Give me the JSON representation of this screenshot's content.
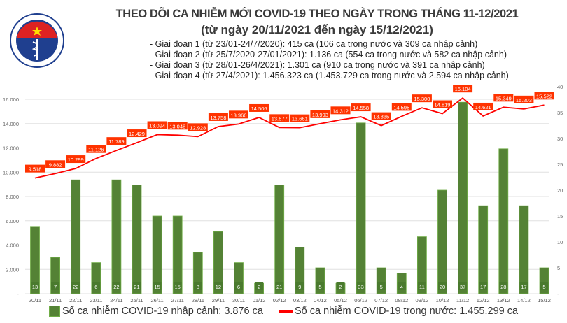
{
  "header": {
    "title": "THEO DÕI CA NHIỄM MỚI COVID-19 THEO NGÀY TRONG THÁNG 11-12/2021",
    "subtitle": "(từ ngày 20/11/2021 đến ngày 15/12/2021)",
    "phases": [
      "- Giai đoạn 1 (từ 23/01-24/7/2020): 415 ca (106 ca trong nước và 309 ca nhập cảnh)",
      "- Giai đoạn 2 (từ 25/7/2020-27/01/2021): 1.136 ca (554 ca trong nước và 582 ca nhập cảnh)",
      "- Giai đoạn 3 (từ 28/01-26/4/2021): 1.301 ca (910 ca trong nước và 391 ca nhập cảnh)",
      "- Giai đoạn 4 (từ 27/4/2021): 1.456.323 ca (1.453.729 ca trong nước và 2.594 ca nhập cảnh)"
    ],
    "logo_text": "BỘ Y TẾ MINISTRY OF HEALTH"
  },
  "legend": {
    "bar_label": "Số ca nhiễm COVID-19 nhập cảnh: 3.876 ca",
    "line_label": "Số ca nhiễm COVID-19 trong nước: 1.455.299 ca"
  },
  "colors": {
    "bar": "#548235",
    "bar_border": "#70ad47",
    "line": "#ff0000",
    "line_label_bg": "#ff3300"
  },
  "chart_data": {
    "type": "bar+line",
    "categories": [
      "20/11",
      "21/11",
      "22/11",
      "23/11",
      "24/11",
      "25/11",
      "26/11",
      "27/11",
      "28/11",
      "29/11",
      "30/11",
      "01/12",
      "02/12",
      "03/12",
      "04/12",
      "05/12",
      "06/12",
      "07/12",
      "08/12",
      "09/12",
      "10/12",
      "11/12",
      "12/12",
      "13/12",
      "14/12",
      "15/12"
    ],
    "series": [
      {
        "name": "Số ca nhiễm COVID-19 nhập cảnh: 3.876 ca",
        "type": "bar",
        "axis": "right",
        "values": [
          13,
          7,
          22,
          6,
          22,
          21,
          15,
          15,
          8,
          12,
          6,
          2,
          21,
          9,
          5,
          2,
          33,
          5,
          4,
          11,
          20,
          37,
          17,
          28,
          17,
          5
        ],
        "labels": [
          "13",
          "7",
          "22",
          "6",
          "22",
          "21",
          "15",
          "15",
          "8",
          "12",
          "6",
          "2",
          "21",
          "9",
          "5",
          "2",
          "33",
          "5",
          "4",
          "11",
          "20",
          "37",
          "17",
          "28",
          "17",
          "5"
        ]
      },
      {
        "name": "Số ca nhiễm COVID-19 trong nước: 1.455.299 ca",
        "type": "line",
        "axis": "left",
        "values": [
          9518,
          9882,
          10299,
          11126,
          11789,
          12429,
          13094,
          13048,
          12928,
          13758,
          13966,
          14506,
          13677,
          13661,
          13993,
          14312,
          14558,
          13835,
          14595,
          15300,
          14819,
          16104,
          14621,
          15349,
          15203,
          15522
        ],
        "labels": [
          "9.518",
          "9.882",
          "10.299",
          "11.126",
          "11.789",
          "12.429",
          "13.094",
          "13.048",
          "12.928",
          "13.758",
          "13.966",
          "14.506",
          "13.677",
          "13.661",
          "13.993",
          "14.312",
          "14.558",
          "13.835",
          "14.595",
          "15.300",
          "14.819",
          "16.104",
          "14.621",
          "15.349",
          "15.203",
          "15.522"
        ]
      }
    ],
    "left_axis": {
      "range": [
        0,
        16000
      ],
      "ticks": [
        "-",
        "2.000",
        "4.000",
        "6.000",
        "8.000",
        "10.000",
        "12.000",
        "14.000",
        "16.000"
      ]
    },
    "right_axis": {
      "range": [
        0,
        40
      ],
      "ticks": [
        "-",
        "5",
        "10",
        "15",
        "20",
        "25",
        "30",
        "35",
        "40"
      ]
    },
    "grid": true,
    "legend_position": "bottom"
  }
}
